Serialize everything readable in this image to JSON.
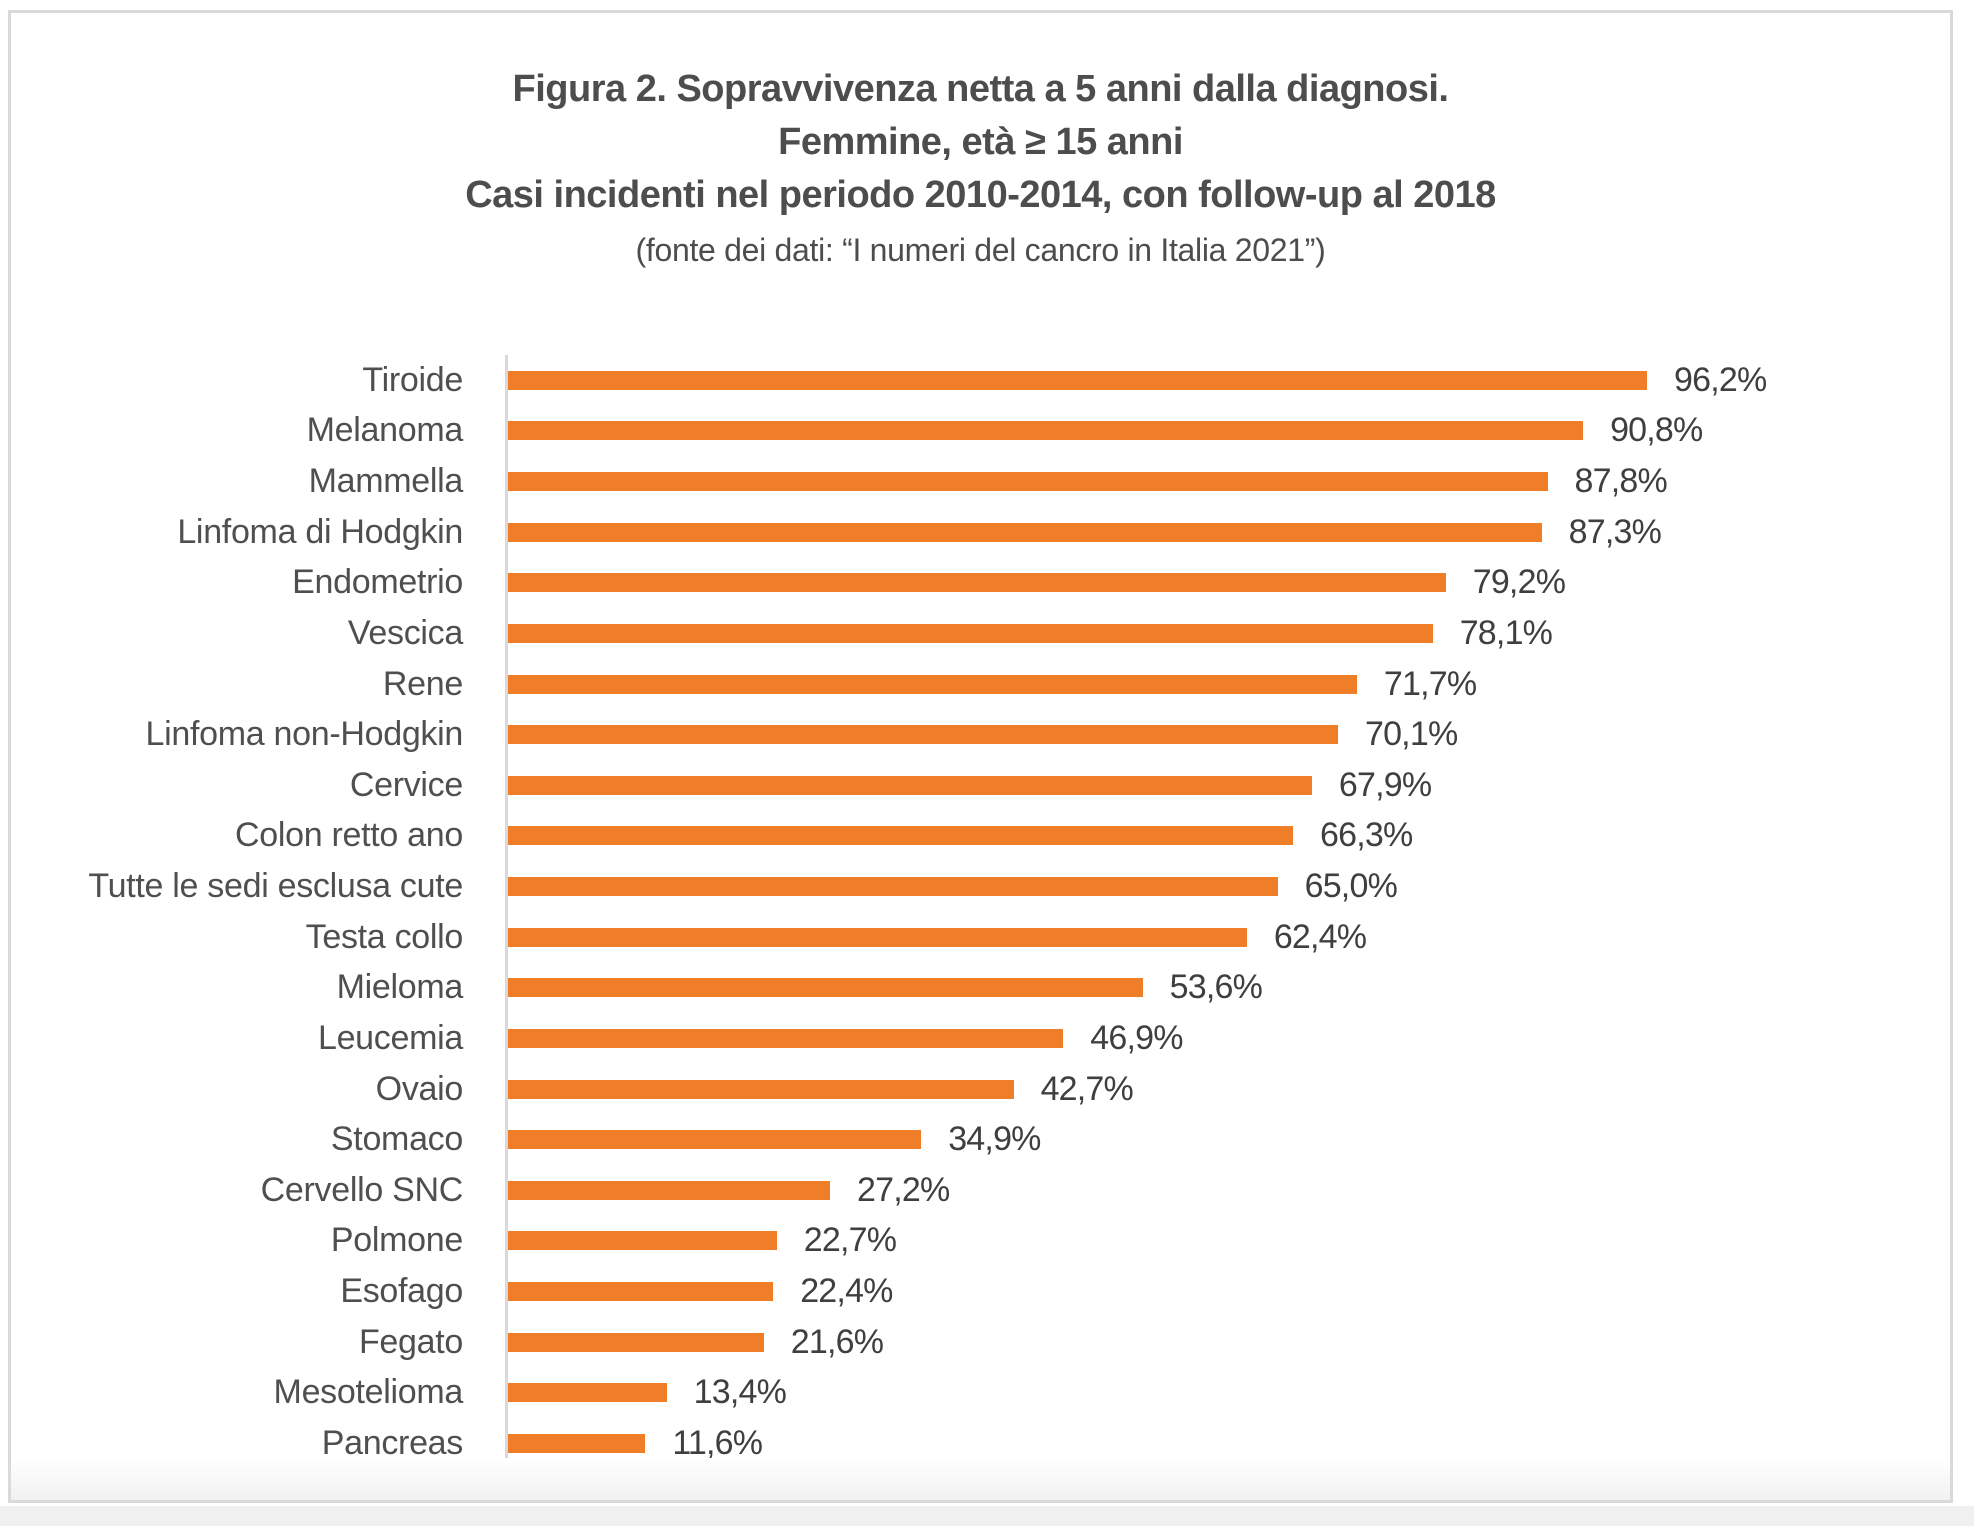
{
  "figure": {
    "title_line1": "Figura 2. Sopravvivenza netta a 5 anni dalla diagnosi.",
    "title_line2": "Femmine, età ≥ 15 anni",
    "title_line3": "Casi incidenti nel periodo 2010-2014, con follow-up al 2018",
    "source_line": "(fonte dei dati: “I numeri del cancro in Italia 2021”)"
  },
  "colors": {
    "bar": "#F07E28",
    "axis": "#D9D9D9",
    "frame_border": "#D9D9D9",
    "title_text": "#4D4D4D",
    "label_text": "#4F4F4F",
    "value_text": "#3F3F3F"
  },
  "chart_data": {
    "type": "bar",
    "orientation": "horizontal",
    "title": "Figura 2. Sopravvivenza netta a 5 anni dalla diagnosi. Femmine, età ≥ 15 anni. Casi incidenti nel periodo 2010-2014, con follow-up al 2018",
    "source": "(fonte dei dati: “I numeri del cancro in Italia 2021”)",
    "unit": "percent",
    "xlim": [
      0,
      100
    ],
    "grid": false,
    "legend": false,
    "categories": [
      "Tiroide",
      "Melanoma",
      "Mammella",
      "Linfoma di Hodgkin",
      "Endometrio",
      "Vescica",
      "Rene",
      "Linfoma non-Hodgkin",
      "Cervice",
      "Colon retto ano",
      "Tutte le sedi esclusa cute",
      "Testa collo",
      "Mieloma",
      "Leucemia",
      "Ovaio",
      "Stomaco",
      "Cervello SNC",
      "Polmone",
      "Esofago",
      "Fegato",
      "Mesotelioma",
      "Pancreas"
    ],
    "values": [
      96.2,
      90.8,
      87.8,
      87.3,
      79.2,
      78.1,
      71.7,
      70.1,
      67.9,
      66.3,
      65.0,
      62.4,
      53.6,
      46.9,
      42.7,
      34.9,
      27.2,
      22.7,
      22.4,
      21.6,
      13.4,
      11.6
    ],
    "value_labels": [
      "96,2%",
      "90,8%",
      "87,8%",
      "87,3%",
      "79,2%",
      "78,1%",
      "71,7%",
      "70,1%",
      "67,9%",
      "66,3%",
      "65,0%",
      "62,4%",
      "53,6%",
      "46,9%",
      "42,7%",
      "34,9%",
      "27,2%",
      "22,7%",
      "22,4%",
      "21,6%",
      "13,4%",
      "11,6%"
    ]
  }
}
